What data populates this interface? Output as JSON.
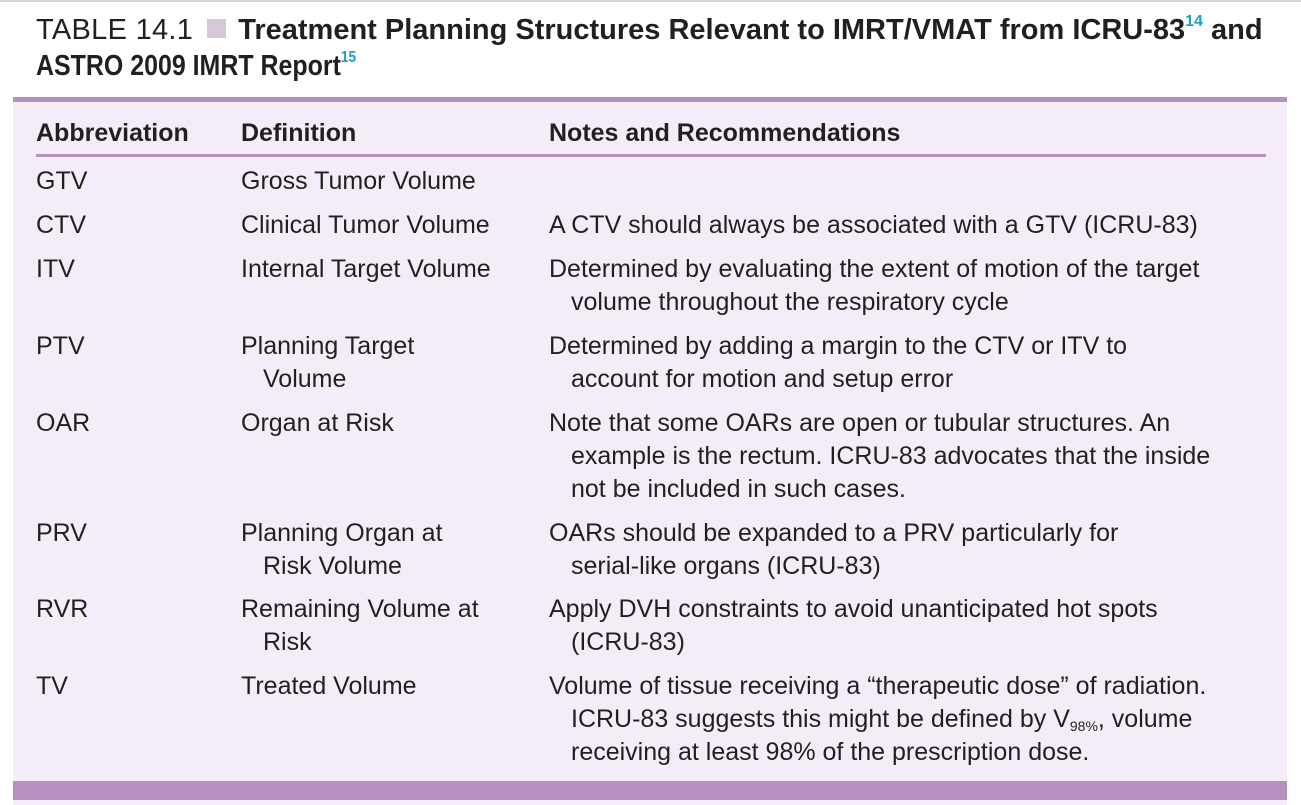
{
  "caption": {
    "label": "TABLE 14.1",
    "title": "Treatment Planning Structures Relevant to IMRT/VMAT from ICRU-83",
    "ref1": "14",
    "and": " and",
    "title_line2": "ASTRO 2009 IMRT Report",
    "ref2": "15"
  },
  "columns": [
    "Abbreviation",
    "Definition",
    "Notes and Recommendations"
  ],
  "rows": [
    {
      "abbr": "GTV",
      "def": [
        "Gross Tumor Volume"
      ],
      "notes": []
    },
    {
      "abbr": "CTV",
      "def": [
        "Clinical Tumor Volume"
      ],
      "notes": [
        "A CTV should always be associated with a GTV (ICRU-83)"
      ]
    },
    {
      "abbr": "ITV",
      "def": [
        "Internal Target Volume"
      ],
      "notes": [
        "Determined by evaluating the extent of motion of the target",
        "volume throughout the respiratory cycle"
      ]
    },
    {
      "abbr": "PTV",
      "def": [
        "Planning Target",
        "Volume"
      ],
      "notes": [
        "Determined by adding a margin to the CTV or ITV to",
        "account for motion and setup error"
      ]
    },
    {
      "abbr": "OAR",
      "def": [
        "Organ at Risk"
      ],
      "notes": [
        "Note that some OARs are open or tubular structures. An",
        "example is the rectum. ICRU-83 advocates that the inside",
        "not be included in such cases."
      ]
    },
    {
      "abbr": "PRV",
      "def": [
        "Planning Organ at",
        "Risk Volume"
      ],
      "notes": [
        "OARs should be expanded to a PRV particularly for",
        "serial-like organs (ICRU-83)"
      ]
    },
    {
      "abbr": "RVR",
      "def": [
        "Remaining Volume at",
        "Risk"
      ],
      "notes": [
        "Apply DVH constraints to avoid unanticipated hot spots",
        "(ICRU-83)"
      ]
    },
    {
      "abbr": "TV",
      "def": [
        "Treated Volume"
      ],
      "notes": [
        "Volume of tissue receiving a “therapeutic dose” of radiation.",
        "ICRU-83 suggests this might be defined by V",
        "98%",
        ", volume",
        "receiving at least 98% of the prescription dose."
      ]
    }
  ]
}
